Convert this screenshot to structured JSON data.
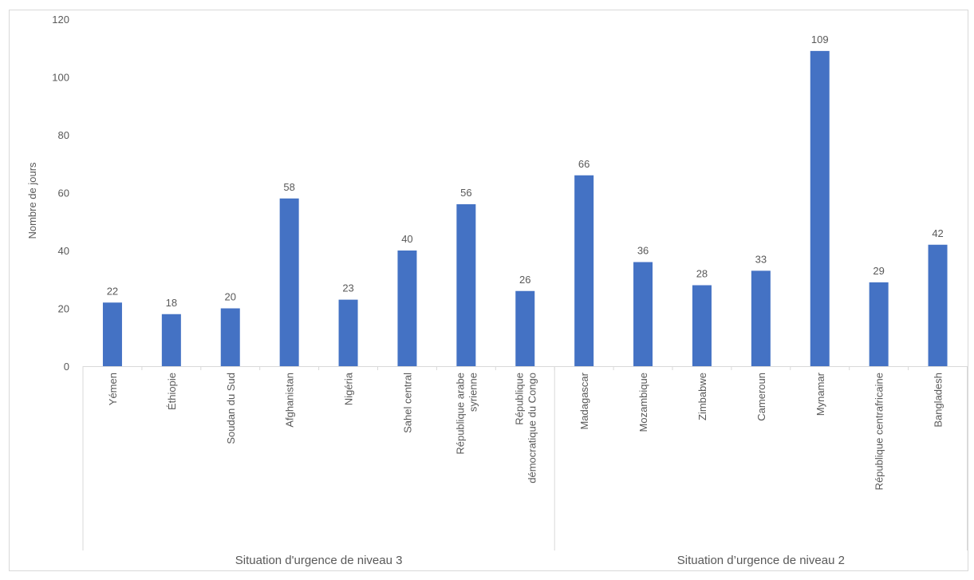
{
  "chart_data": {
    "type": "bar",
    "ylabel": "Nombre de jours",
    "ylim": [
      0,
      120
    ],
    "yticks": [
      0,
      20,
      40,
      60,
      80,
      100,
      120
    ],
    "grid": false,
    "bar_color": "#4472C4",
    "categories": [
      "Yémen",
      "Éthiopie",
      "Soudan du Sud",
      "Afghanistan",
      "Nigéria",
      "Sahel central",
      "République arabe syrienne",
      "République démocratique du Congo",
      "Madagascar",
      "Mozambique",
      "Zimbabwe",
      "Cameroun",
      "Mynamar",
      "République centrafricaine",
      "Bangladesh"
    ],
    "category_lines": [
      [
        "Yémen"
      ],
      [
        "Éthiopie"
      ],
      [
        "Soudan du Sud"
      ],
      [
        "Afghanistan"
      ],
      [
        "Nigéria"
      ],
      [
        "Sahel central"
      ],
      [
        "République arabe",
        "syrienne"
      ],
      [
        "République",
        "démocratique du Congo"
      ],
      [
        "Madagascar"
      ],
      [
        "Mozambique"
      ],
      [
        "Zimbabwe"
      ],
      [
        "Cameroun"
      ],
      [
        "Mynamar"
      ],
      [
        "République centrafricaine"
      ],
      [
        "Bangladesh"
      ]
    ],
    "values": [
      22,
      18,
      20,
      58,
      23,
      40,
      56,
      26,
      66,
      36,
      28,
      33,
      109,
      29,
      42
    ],
    "groups": [
      {
        "label": "Situation d'urgence de niveau 3",
        "count": 8
      },
      {
        "label": "Situation d’urgence de niveau 2",
        "count": 7
      }
    ]
  }
}
